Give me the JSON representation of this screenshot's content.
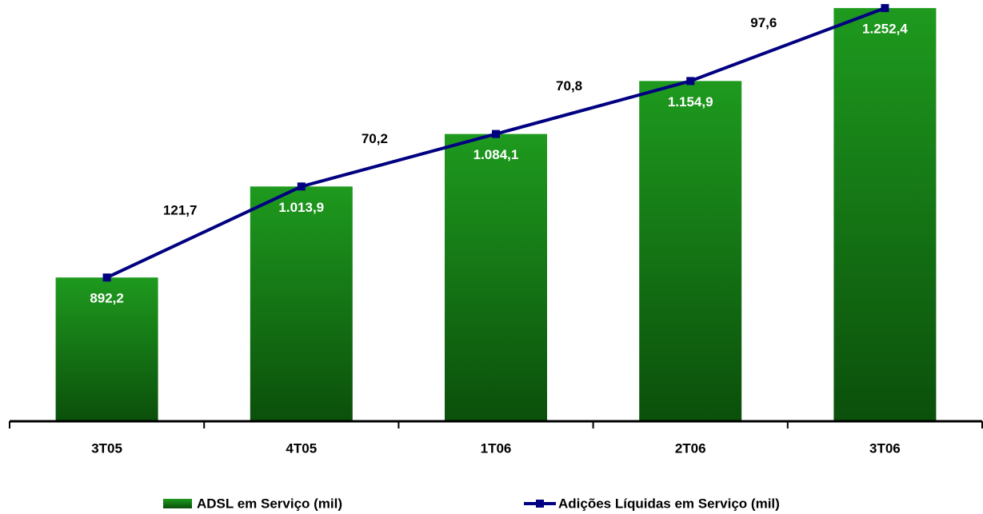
{
  "chart_data": {
    "type": "bar_line",
    "categories": [
      "3T05",
      "4T05",
      "1T06",
      "2T06",
      "3T06"
    ],
    "series": [
      {
        "name": "ADSL em Serviço (mil)",
        "color": "#137a13",
        "values": [
          892.2,
          1013.9,
          1084.1,
          1154.9,
          1252.4
        ],
        "value_labels": [
          "892,2",
          "1.013,9",
          "1.084,1",
          "1.154,9",
          "1.252,4"
        ]
      },
      {
        "name": "Adições Líquidas em Serviço (mil)",
        "color": "#000080",
        "values": [
          null,
          121.7,
          70.2,
          70.8,
          97.6
        ],
        "value_labels": [
          null,
          "121,7",
          "70,2",
          "70,8",
          "97,6"
        ]
      }
    ],
    "ylim": [
      700,
      1260
    ]
  }
}
